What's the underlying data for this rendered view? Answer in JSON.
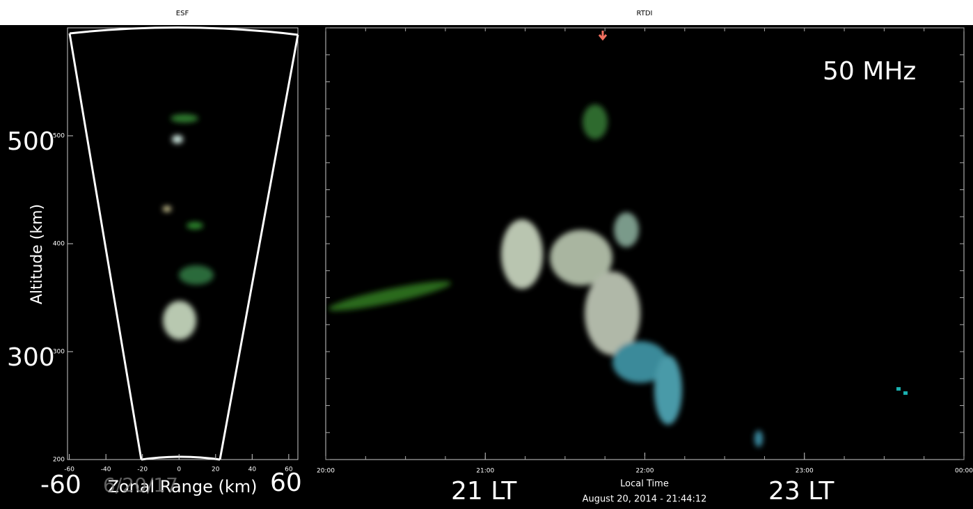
{
  "chart_data": [
    {
      "type": "image",
      "title": "ESF",
      "x_label": "Zonal Range (km)",
      "y_label": "Altitude (km)",
      "xlim": [
        -61,
        65
      ],
      "xticks": [
        -60,
        -40,
        -20,
        0,
        20,
        40,
        60
      ],
      "ylim": [
        200,
        600
      ],
      "yticks": [
        200,
        300,
        400,
        500
      ],
      "annotations": [
        "500",
        "300",
        "-60",
        "60",
        "6/20/17"
      ]
    },
    {
      "type": "image",
      "title": "RTDI",
      "x_label": "Local Time",
      "subtitle": "August 20, 2014 - 21:44:12",
      "xlim": [
        20,
        24
      ],
      "xticks": [
        {
          "value": 20,
          "label": "20:00"
        },
        {
          "value": 21,
          "label": "21:00"
        },
        {
          "value": 22,
          "label": "22:00"
        },
        {
          "value": 23,
          "label": "23:00"
        },
        {
          "value": 24,
          "label": "00:00"
        }
      ],
      "annotations": [
        "50 MHz",
        "21 LT",
        "23 LT"
      ]
    }
  ]
}
